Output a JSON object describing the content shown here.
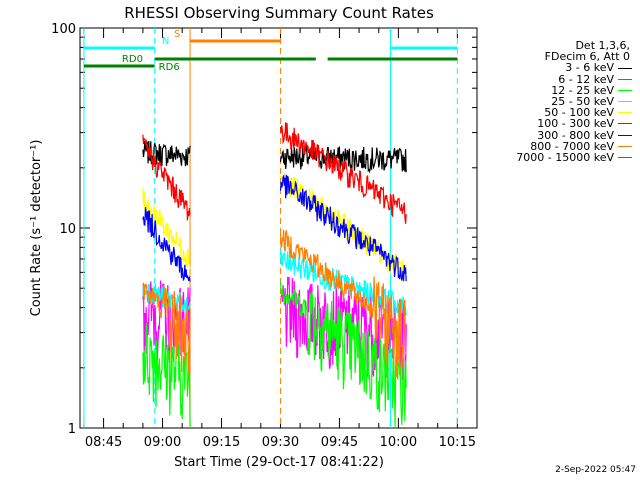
{
  "chart_data": {
    "type": "line",
    "title": "RHESSI Observing Summary Count Rates",
    "xlabel": "Start Time (29-Oct-17 08:41:22)",
    "ylabel": "Count Rate (s⁻¹ detector⁻¹)",
    "yscale": "log",
    "ylim": [
      1,
      100
    ],
    "y_ticks": [
      {
        "value": 1,
        "label": "1"
      },
      {
        "value": 10,
        "label": "10"
      },
      {
        "value": 100,
        "label": "100"
      }
    ],
    "xlim": [
      "08:39",
      "10:20"
    ],
    "x_ticks": [
      {
        "value": "08:45",
        "label": "08:45"
      },
      {
        "value": "09:00",
        "label": "09:00"
      },
      {
        "value": "09:15",
        "label": "09:15"
      },
      {
        "value": "09:30",
        "label": "09:30"
      },
      {
        "value": "09:45",
        "label": "09:45"
      },
      {
        "value": "10:00",
        "label": "10:00"
      },
      {
        "value": "10:15",
        "label": "10:15"
      }
    ],
    "legend_header": [
      "Det 1,3,6,",
      "FDecim 6, Att 0"
    ],
    "legend_position": "right, outside plot",
    "intervals": [
      {
        "start": "08:55",
        "end": "09:07"
      },
      {
        "start": "09:30",
        "end": "10:02"
      }
    ],
    "series": [
      {
        "name": "3 - 6 keV",
        "color": "#000000",
        "values": [
          [
            [
              "08:55",
              24
            ],
            [
              "09:07",
              23
            ]
          ],
          [
            [
              "09:30",
              23
            ],
            [
              "10:02",
              22
            ]
          ]
        ]
      },
      {
        "name": "6 - 12 keV",
        "color": "#ff00ff",
        "values": [
          [
            [
              "08:55",
              4
            ],
            [
              "09:07",
              3.5
            ]
          ],
          [
            [
              "09:30",
              4
            ],
            [
              "10:02",
              3
            ]
          ]
        ]
      },
      {
        "name": "12 - 25 keV",
        "color": "#00ff00",
        "values": [
          [
            [
              "08:55",
              2.5
            ],
            [
              "09:07",
              1.8
            ]
          ],
          [
            [
              "09:30",
              5
            ],
            [
              "10:02",
              1.6
            ]
          ]
        ]
      },
      {
        "name": "25 - 50 keV",
        "color": "#00ffff",
        "values": [
          [
            [
              "08:55",
              5
            ],
            [
              "09:07",
              4
            ]
          ],
          [
            [
              "09:30",
              7
            ],
            [
              "10:02",
              4
            ]
          ]
        ]
      },
      {
        "name": "50 - 100 keV",
        "color": "#ffff00",
        "values": [
          [
            [
              "08:55",
              14
            ],
            [
              "09:07",
              7
            ]
          ],
          [
            [
              "09:30",
              18
            ],
            [
              "10:02",
              6
            ]
          ]
        ]
      },
      {
        "name": "100 - 300 keV",
        "color": "#ff0000",
        "values": [
          [
            [
              "08:55",
              26
            ],
            [
              "09:07",
              12
            ]
          ],
          [
            [
              "09:30",
              31
            ],
            [
              "10:02",
              12
            ]
          ]
        ]
      },
      {
        "name": "300 - 800 keV",
        "color": "#0000ff",
        "values": [
          [
            [
              "08:55",
              12
            ],
            [
              "09:07",
              5.5
            ]
          ],
          [
            [
              "09:30",
              17
            ],
            [
              "10:02",
              6
            ]
          ]
        ]
      },
      {
        "name": "800 - 7000 keV",
        "color": "#ff8000",
        "values": [
          [
            [
              "08:55",
              5
            ],
            [
              "09:07",
              3
            ]
          ],
          [
            [
              "09:30",
              9
            ],
            [
              "10:02",
              3
            ]
          ]
        ]
      },
      {
        "name": "7000 - 15000 keV",
        "color": "#a05000",
        "values": []
      }
    ],
    "flag_bars": [
      {
        "label": "N",
        "color": "#00ffff",
        "segments": [
          [
            "08:40",
            "08:58"
          ],
          [
            "09:58",
            "10:15"
          ]
        ]
      },
      {
        "label": "S",
        "color": "#ff8000",
        "segments": [
          [
            "09:07",
            "09:30"
          ]
        ]
      },
      {
        "label": "RD0",
        "color": "#008000",
        "segments": [
          [
            "08:40",
            "08:58"
          ]
        ]
      },
      {
        "label": "RD6",
        "color": "#008000",
        "segments": [
          [
            "08:58",
            "09:30"
          ],
          [
            "09:30",
            "09:39"
          ],
          [
            "09:42",
            "10:13"
          ],
          [
            "10:13",
            "10:15"
          ]
        ]
      }
    ],
    "vertical_markers": [
      {
        "time": "08:40",
        "color": "#00ffff",
        "style": "solid"
      },
      {
        "time": "08:58",
        "color": "#00ffff",
        "style": "dashed"
      },
      {
        "time": "09:07",
        "color": "#ff8000",
        "style": "solid"
      },
      {
        "time": "09:30",
        "color": "#ff8000",
        "style": "dashed"
      },
      {
        "time": "09:58",
        "color": "#00ffff",
        "style": "solid"
      },
      {
        "time": "10:15",
        "color": "#00ffff",
        "style": "dashed"
      }
    ],
    "grid": false
  },
  "footer": {
    "date_stamp": "2-Sep-2022 05:47"
  }
}
